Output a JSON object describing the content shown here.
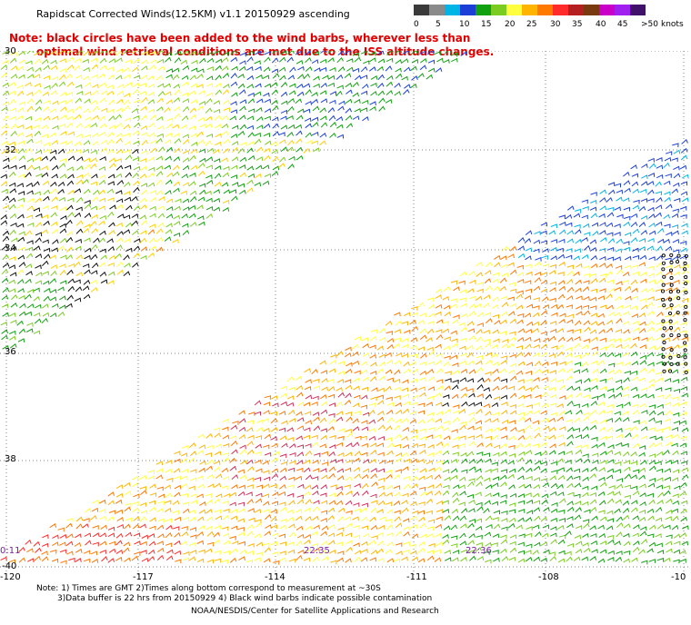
{
  "header": {
    "title": "Rapidscat Corrected Winds(12.5KM) v1.1 20150929 ascending",
    "note_line1": "Note: black circles have been added to the wind barbs, wherever less than",
    "note_line2": "optimal wind retrieval conditions are met due to the ISS altitude changes."
  },
  "colorbar": {
    "colors": [
      "#3a3a3a",
      "#8a8a8a",
      "#00b4e6",
      "#1b3fd6",
      "#10a010",
      "#7acc20",
      "#ffff40",
      "#ffb400",
      "#ff7800",
      "#ff2a2a",
      "#b42020",
      "#7a3a10",
      "#c800c8",
      "#a020f0",
      "#40106a"
    ],
    "labels": [
      "0",
      "5",
      "10",
      "15",
      "20",
      "25",
      "30",
      "35",
      "40",
      "45",
      ">50"
    ],
    "unit": "knots"
  },
  "map": {
    "lat_labels": [
      "30",
      "32",
      "34",
      "36",
      "38",
      "-40"
    ],
    "lon_labels": [
      "-120",
      "-117",
      "-114",
      "-111",
      "-108",
      "-10"
    ],
    "time_labels": [
      "0:11",
      "22:35",
      "22:36"
    ]
  },
  "footer": {
    "note_line1": "Note: 1) Times are GMT 2)Times along bottom correspond to measurement at ~30S",
    "note_line2": "3)Data buffer is 22 hrs from 20150929 4) Black wind barbs indicate possible contamination",
    "credit": "NOAA/NESDIS/Center for Satellite Applications and Research"
  }
}
